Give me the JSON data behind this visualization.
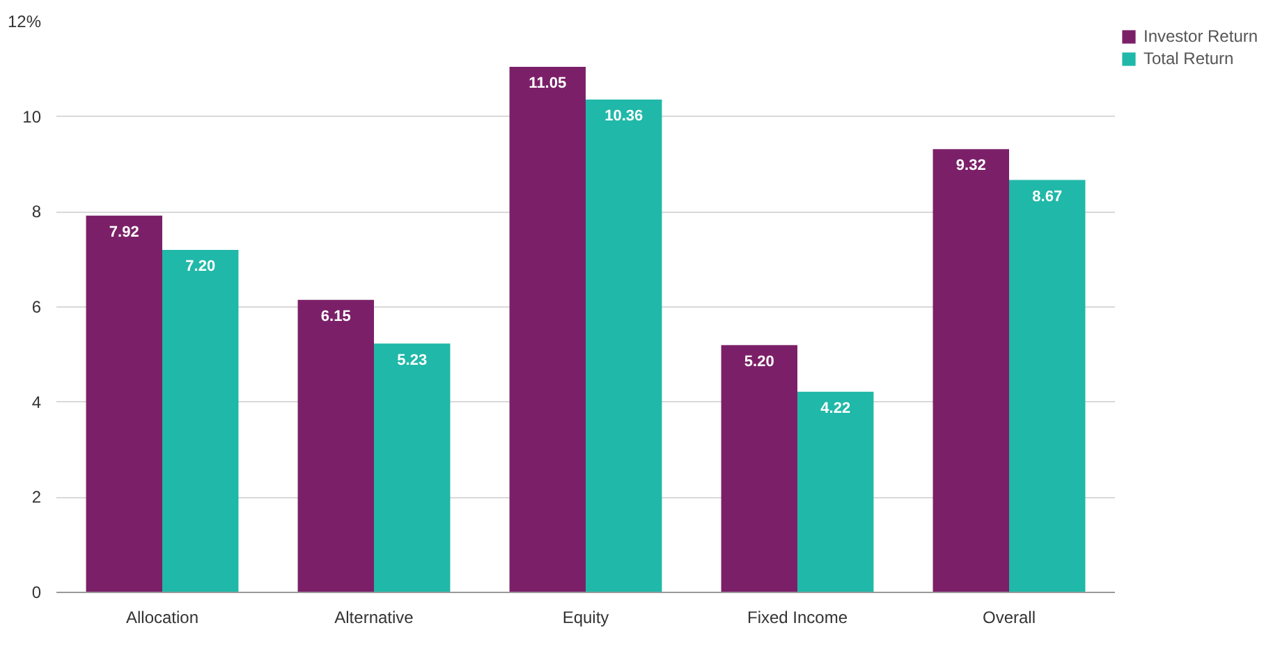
{
  "chart_data": {
    "type": "bar",
    "categories": [
      "Allocation",
      "Alternative",
      "Equity",
      "Fixed Income",
      "Overall"
    ],
    "series": [
      {
        "name": "Investor Return",
        "color": "#7b2068",
        "values": [
          7.92,
          6.15,
          11.05,
          5.2,
          9.32
        ],
        "value_labels": [
          "7.92",
          "6.15",
          "11.05",
          "5.20",
          "9.32"
        ]
      },
      {
        "name": "Total Return",
        "color": "#20b8a8",
        "values": [
          7.2,
          5.23,
          10.36,
          4.22,
          8.67
        ],
        "value_labels": [
          "7.20",
          "5.23",
          "10.36",
          "4.22",
          "8.67"
        ]
      }
    ],
    "ylim": [
      0,
      12
    ],
    "yticks": [
      0,
      2,
      4,
      6,
      8,
      10,
      {
        "value": 12,
        "label": "12%"
      }
    ],
    "grid": "y",
    "legend": "top right"
  }
}
